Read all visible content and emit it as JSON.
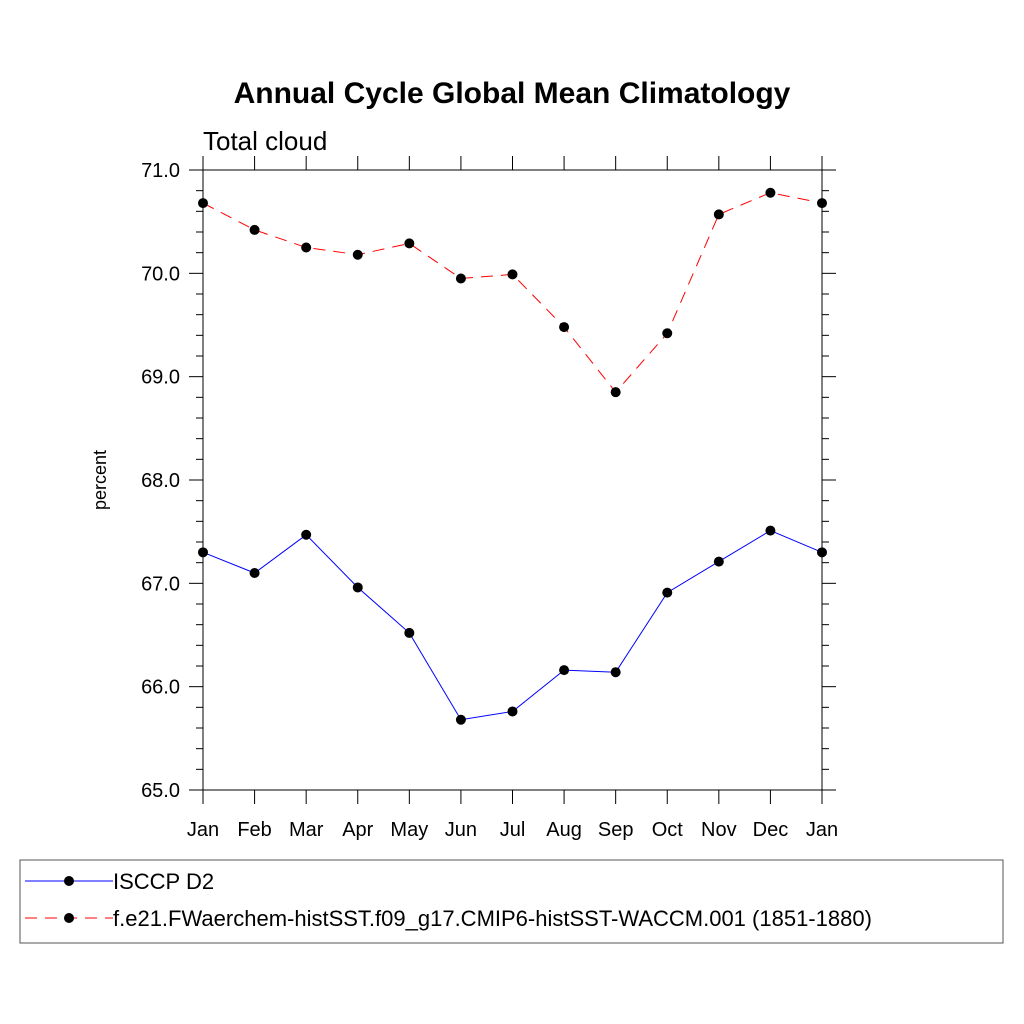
{
  "chart_data": {
    "type": "line",
    "title": "Annual Cycle Global Mean Climatology",
    "subtitle": "Total cloud",
    "xlabel": "",
    "ylabel": "percent",
    "categories": [
      "Jan",
      "Feb",
      "Mar",
      "Apr",
      "May",
      "Jun",
      "Jul",
      "Aug",
      "Sep",
      "Oct",
      "Nov",
      "Dec",
      "Jan"
    ],
    "ylim": [
      65.0,
      71.0
    ],
    "yticks": [
      "65.0",
      "66.0",
      "67.0",
      "68.0",
      "69.0",
      "70.0",
      "71.0"
    ],
    "grid": false,
    "legend_position": "bottom",
    "series": [
      {
        "name": "ISCCP D2",
        "color": "#0000ff",
        "dash": "solid",
        "values": [
          67.3,
          67.1,
          67.47,
          66.96,
          66.52,
          65.68,
          65.76,
          66.16,
          66.14,
          66.91,
          67.21,
          67.51,
          67.3
        ]
      },
      {
        "name": "f.e21.FWaerchem-histSST.f09_g17.CMIP6-histSST-WACCM.001 (1851-1880)",
        "color": "#ff0000",
        "dash": "dashed",
        "values": [
          70.68,
          70.42,
          70.25,
          70.18,
          70.29,
          69.95,
          69.99,
          69.48,
          68.85,
          69.42,
          70.57,
          70.78,
          70.68
        ]
      }
    ]
  }
}
